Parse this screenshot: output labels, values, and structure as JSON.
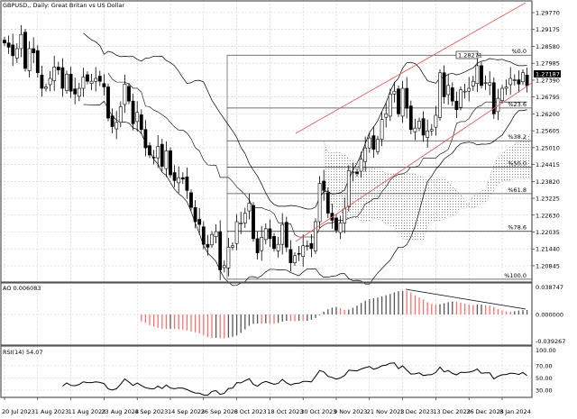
{
  "header": {
    "title": "GBPUSD,, Daily:  Great Britan vs US Dollar"
  },
  "price_tags": {
    "current": "1.27187",
    "high_label": "1.28271"
  },
  "colors": {
    "bull_body": "#ffffff",
    "bear_body": "#000000",
    "channel": "#e06060",
    "ao_down": "#ff7070",
    "ao_up": "#555555",
    "grid": "#c8c8c8"
  },
  "chart_data": [
    {
      "type": "candlestick",
      "title": "GBPUSD,, Daily:  Great Britan vs US Dollar",
      "dates_start": "20 Jul 2023",
      "dates_end": "12 Jan 2024",
      "x_tick_labels": [
        "20 Jul 2023",
        "1 Aug 2023",
        "11 Aug 2023",
        "23 Aug 2023",
        "4 Sep 2023",
        "14 Sep 2023",
        "26 Sep 2023",
        "6 Oct 2023",
        "18 Oct 2023",
        "30 Oct 2023",
        "9 Nov 2023",
        "21 Nov 2023",
        "1 Dec 2023",
        "13 Dec 2023",
        "26 Dec 2023",
        "8 Jan 2024"
      ],
      "y_tick_labels": [
        "1.29770",
        "1.29175",
        "1.28580",
        "1.27985",
        "1.27390",
        "1.26795",
        "1.26200",
        "1.25605",
        "1.25010",
        "1.24415",
        "1.23820",
        "1.23225",
        "1.22630",
        "1.22035",
        "1.21440",
        "1.20845"
      ],
      "ylim": [
        1.201,
        1.3
      ],
      "closes": [
        1.287,
        1.2855,
        1.2825,
        1.285,
        1.29,
        1.278,
        1.285,
        1.2835,
        1.2765,
        1.271,
        1.2715,
        1.2745,
        1.2785,
        1.2775,
        1.271,
        1.276,
        1.27,
        1.269,
        1.271,
        1.275,
        1.2735,
        1.2735,
        1.2745,
        1.2735,
        1.2715,
        1.2605,
        1.2575,
        1.259,
        1.2645,
        1.2725,
        1.2665,
        1.2585,
        1.2625,
        1.2565,
        1.25,
        1.2475,
        1.2465,
        1.2505,
        1.2435,
        1.249,
        1.2405,
        1.2385,
        1.2395,
        1.239,
        1.235,
        1.229,
        1.224,
        1.223,
        1.216,
        1.215,
        1.2195,
        1.2205,
        1.207,
        1.2085,
        1.215,
        1.2155,
        1.224,
        1.2235,
        1.227,
        1.2305,
        1.218,
        1.213,
        1.2185,
        1.2215,
        1.218,
        1.2145,
        1.216,
        1.223,
        1.215,
        1.2095,
        1.212,
        1.2125,
        1.2155,
        1.2155,
        1.2145,
        1.224,
        1.2375,
        1.235,
        1.227,
        1.2245,
        1.221,
        1.2235,
        1.2285,
        1.242,
        1.2415,
        1.241,
        1.246,
        1.25,
        1.2535,
        1.2495,
        1.253,
        1.26,
        1.262,
        1.269,
        1.27,
        1.262,
        1.271,
        1.264,
        1.2565,
        1.257,
        1.2595,
        1.2545,
        1.256,
        1.2565,
        1.2615,
        1.2765,
        1.268,
        1.272,
        1.2665,
        1.2635,
        1.2705,
        1.27,
        1.271,
        1.2735,
        1.279,
        1.272,
        1.273,
        1.273,
        1.262,
        1.2675,
        1.271,
        1.2715,
        1.2745,
        1.274,
        1.2725,
        1.2765,
        1.2719
      ],
      "fibonacci": {
        "high": 1.2827,
        "low": 1.2037,
        "levels": [
          {
            "ratio": 0.0,
            "label": "%0.0"
          },
          {
            "ratio": 0.236,
            "label": "%23.6"
          },
          {
            "ratio": 0.382,
            "label": "%38.2"
          },
          {
            "ratio": 0.5,
            "label": "%50.0"
          },
          {
            "ratio": 0.618,
            "label": "%61.8"
          },
          {
            "ratio": 0.786,
            "label": "%78.6"
          },
          {
            "ratio": 1.0,
            "label": "%100.0"
          }
        ]
      },
      "indicators": [
        "Bollinger Bands",
        "Ichimoku cloud",
        "Price channel"
      ]
    },
    {
      "type": "bar",
      "title": "AO 0.006083",
      "y_tick_labels": [
        "0.038747",
        "0.000000",
        "-0.039267"
      ],
      "ylim": [
        -0.039267,
        0.038747
      ]
    },
    {
      "type": "line",
      "title": "RSI(14) 54.07",
      "y_tick_labels": [
        "100.00",
        "70.00",
        "50.00",
        "30.00"
      ],
      "ylim": [
        0,
        100
      ]
    }
  ]
}
